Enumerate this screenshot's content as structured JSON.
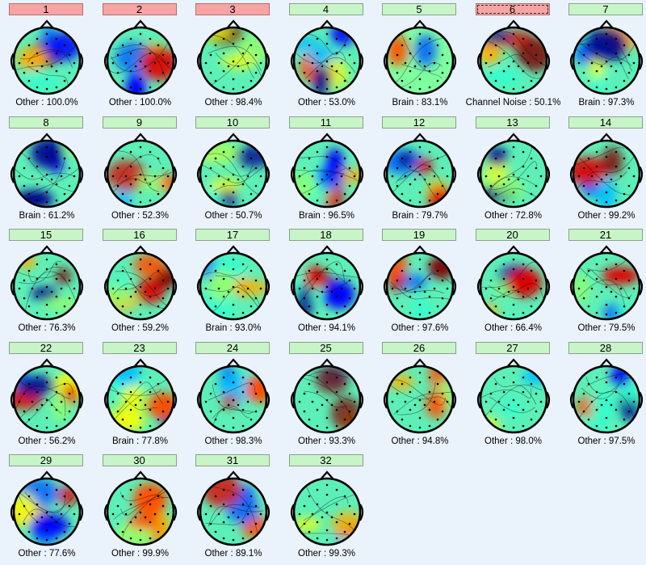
{
  "colors": {
    "ok_button": "#c8f5c8",
    "rejected_button": "#f7a4a4",
    "background": "#eaf2fc"
  },
  "components": [
    {
      "label": "1",
      "caption": "Other : 100.0%",
      "status": "rejected"
    },
    {
      "label": "2",
      "caption": "Other : 100.0%",
      "status": "rejected"
    },
    {
      "label": "3",
      "caption": "Other : 98.4%",
      "status": "rejected"
    },
    {
      "label": "4",
      "caption": "Other : 53.0%",
      "status": "accepted"
    },
    {
      "label": "5",
      "caption": "Brain : 83.1%",
      "status": "accepted"
    },
    {
      "label": "6",
      "caption": "Channel Noise : 50.1%",
      "status": "rejected",
      "selected": true
    },
    {
      "label": "7",
      "caption": "Brain : 97.3%",
      "status": "accepted"
    },
    {
      "label": "8",
      "caption": "Brain : 61.2%",
      "status": "accepted"
    },
    {
      "label": "9",
      "caption": "Other : 52.3%",
      "status": "accepted"
    },
    {
      "label": "10",
      "caption": "Other : 50.7%",
      "status": "accepted"
    },
    {
      "label": "11",
      "caption": "Brain : 96.5%",
      "status": "accepted"
    },
    {
      "label": "12",
      "caption": "Brain : 79.7%",
      "status": "accepted"
    },
    {
      "label": "13",
      "caption": "Other : 72.8%",
      "status": "accepted"
    },
    {
      "label": "14",
      "caption": "Other : 99.2%",
      "status": "accepted"
    },
    {
      "label": "15",
      "caption": "Other : 76.3%",
      "status": "accepted"
    },
    {
      "label": "16",
      "caption": "Other : 59.2%",
      "status": "accepted"
    },
    {
      "label": "17",
      "caption": "Brain : 93.0%",
      "status": "accepted"
    },
    {
      "label": "18",
      "caption": "Other : 94.1%",
      "status": "accepted"
    },
    {
      "label": "19",
      "caption": "Other : 97.6%",
      "status": "accepted"
    },
    {
      "label": "20",
      "caption": "Other : 66.4%",
      "status": "accepted"
    },
    {
      "label": "21",
      "caption": "Other : 79.5%",
      "status": "accepted"
    },
    {
      "label": "22",
      "caption": "Other : 56.2%",
      "status": "accepted"
    },
    {
      "label": "23",
      "caption": "Brain : 77.8%",
      "status": "accepted"
    },
    {
      "label": "24",
      "caption": "Other : 98.3%",
      "status": "accepted"
    },
    {
      "label": "25",
      "caption": "Other : 93.3%",
      "status": "accepted"
    },
    {
      "label": "26",
      "caption": "Other : 94.8%",
      "status": "accepted"
    },
    {
      "label": "27",
      "caption": "Other : 98.0%",
      "status": "accepted"
    },
    {
      "label": "28",
      "caption": "Other : 97.5%",
      "status": "accepted"
    },
    {
      "label": "29",
      "caption": "Other : 77.6%",
      "status": "accepted"
    },
    {
      "label": "30",
      "caption": "Other : 99.9%",
      "status": "accepted"
    },
    {
      "label": "31",
      "caption": "Other : 89.1%",
      "status": "accepted"
    },
    {
      "label": "32",
      "caption": "Other : 99.3%",
      "status": "accepted"
    }
  ]
}
